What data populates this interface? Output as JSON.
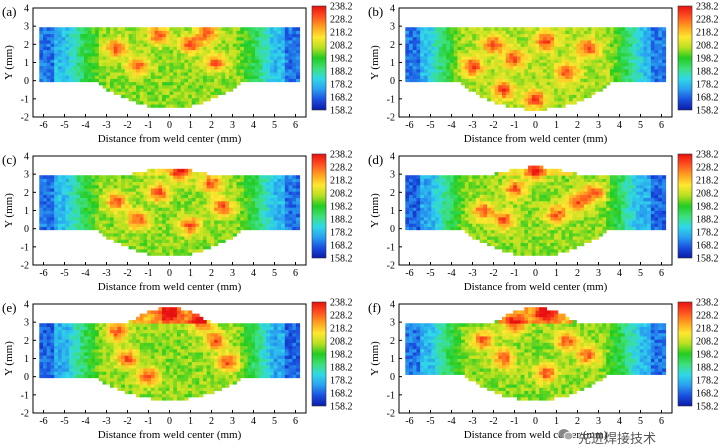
{
  "figure": {
    "watermark": "先进焊接技术",
    "colors": {
      "gradient": [
        "#0a1aa8",
        "#1a4fe0",
        "#2aa0f0",
        "#30d8e8",
        "#3ee07a",
        "#22cc22",
        "#b8e020",
        "#ffe830",
        "#ffa020",
        "#ff5020",
        "#e81010"
      ]
    }
  },
  "chart_data": [
    {
      "type": "heatmap",
      "panel_label": "(a)",
      "xlabel": "Distance from weld center (mm)",
      "ylabel": "Y (mm)",
      "xlim": [
        -6.5,
        6.5
      ],
      "ylim": [
        -2,
        4
      ],
      "xticks": [
        "-6",
        "-5",
        "-4",
        "-3",
        "-2",
        "-1",
        "0",
        "1",
        "2",
        "3",
        "4",
        "5",
        "6"
      ],
      "yticks": [
        "-2",
        "-1",
        "0",
        "1",
        "2",
        "3",
        "4"
      ],
      "colorbar": {
        "min": 158.2,
        "max": 238.2,
        "ticks": [
          "238.2",
          "228.2",
          "218.2",
          "208.2",
          "198.2",
          "188.2",
          "178.2",
          "168.2",
          "158.2"
        ]
      },
      "region": {
        "xmin": -6.2,
        "xmax": 6.2,
        "top": 3,
        "bottom": 0,
        "fz_half_width": 3.6,
        "fz_depth": -1.5,
        "reinforcement": 0
      },
      "hardness": {
        "bm": 178,
        "haz": 192,
        "fz": 204,
        "hot_spots": [
          [
            -2.5,
            1.8
          ],
          [
            -1.5,
            0.8
          ],
          [
            1,
            2
          ],
          [
            2.2,
            1
          ],
          [
            -0.5,
            2.5
          ],
          [
            1.8,
            2.6
          ]
        ]
      }
    },
    {
      "type": "heatmap",
      "panel_label": "(b)",
      "xlabel": "Distance from weld center (mm)",
      "ylabel": "Y (mm)",
      "xlim": [
        -6.5,
        6.5
      ],
      "ylim": [
        -2,
        4
      ],
      "xticks": [
        "-6",
        "-5",
        "-4",
        "-3",
        "-2",
        "-1",
        "0",
        "1",
        "2",
        "3",
        "4",
        "5",
        "6"
      ],
      "yticks": [
        "-2",
        "-1",
        "0",
        "1",
        "2",
        "3",
        "4"
      ],
      "colorbar": {
        "min": 158.2,
        "max": 238.2,
        "ticks": [
          "238.2",
          "228.2",
          "218.2",
          "208.2",
          "198.2",
          "188.2",
          "178.2",
          "168.2",
          "158.2"
        ]
      },
      "region": {
        "xmin": -6.2,
        "xmax": 6.2,
        "top": 3,
        "bottom": 0,
        "fz_half_width": 3.8,
        "fz_depth": -1.6,
        "reinforcement": 0
      },
      "hardness": {
        "bm": 178,
        "haz": 192,
        "fz": 206,
        "hot_spots": [
          [
            -2,
            2
          ],
          [
            -1,
            1.2
          ],
          [
            0.5,
            2.2
          ],
          [
            1.5,
            0.5
          ],
          [
            2.5,
            1.8
          ],
          [
            -3,
            0.8
          ],
          [
            -1.5,
            -0.5
          ],
          [
            0,
            -1
          ]
        ]
      }
    },
    {
      "type": "heatmap",
      "panel_label": "(c)",
      "xlabel": "Distance from weld center (mm)",
      "ylabel": "Y (mm)",
      "xlim": [
        -6.5,
        6.5
      ],
      "ylim": [
        -2,
        4
      ],
      "xticks": [
        "-6",
        "-5",
        "-4",
        "-3",
        "-2",
        "-1",
        "0",
        "1",
        "2",
        "3",
        "4",
        "5",
        "6"
      ],
      "yticks": [
        "-2",
        "-1",
        "0",
        "1",
        "2",
        "3",
        "4"
      ],
      "colorbar": {
        "min": 158.2,
        "max": 238.2,
        "ticks": [
          "238.2",
          "228.2",
          "218.2",
          "208.2",
          "198.2",
          "188.2",
          "178.2",
          "168.2",
          "158.2"
        ]
      },
      "region": {
        "xmin": -6.2,
        "xmax": 6.2,
        "top": 3,
        "bottom": 0,
        "fz_half_width": 3.6,
        "fz_depth": -1.5,
        "reinforcement": 0.3
      },
      "hardness": {
        "bm": 178,
        "haz": 192,
        "fz": 204,
        "hot_spots": [
          [
            -2.5,
            1.5
          ],
          [
            -1.5,
            0.5
          ],
          [
            0.5,
            3.1
          ],
          [
            2,
            2.5
          ],
          [
            2.5,
            1.2
          ],
          [
            -0.5,
            2
          ],
          [
            1,
            0.2
          ]
        ]
      }
    },
    {
      "type": "heatmap",
      "panel_label": "(d)",
      "xlabel": "Distance from weld center (mm)",
      "ylabel": "Y (mm)",
      "xlim": [
        -6.5,
        6.5
      ],
      "ylim": [
        -2,
        4
      ],
      "xticks": [
        "-6",
        "-5",
        "-4",
        "-3",
        "-2",
        "-1",
        "0",
        "1",
        "2",
        "3",
        "4",
        "5",
        "6"
      ],
      "yticks": [
        "-2",
        "-1",
        "0",
        "1",
        "2",
        "3",
        "4"
      ],
      "colorbar": {
        "min": 158.2,
        "max": 238.2,
        "ticks": [
          "238.2",
          "228.2",
          "218.2",
          "208.2",
          "198.2",
          "188.2",
          "178.2",
          "168.2",
          "158.2"
        ]
      },
      "region": {
        "xmin": -6.2,
        "xmax": 6.2,
        "top": 3,
        "bottom": 0,
        "fz_half_width": 3.6,
        "fz_depth": -1.5,
        "reinforcement": 0.4
      },
      "hardness": {
        "bm": 176,
        "haz": 190,
        "fz": 204,
        "hot_spots": [
          [
            -2.5,
            1
          ],
          [
            -1.5,
            0.5
          ],
          [
            0,
            3.2
          ],
          [
            2,
            1.5
          ],
          [
            2.8,
            2
          ],
          [
            -1,
            2.2
          ],
          [
            1,
            0.8
          ]
        ]
      }
    },
    {
      "type": "heatmap",
      "panel_label": "(e)",
      "xlabel": "Distance from weld center (mm)",
      "ylabel": "Y (mm)",
      "xlim": [
        -6.5,
        6.5
      ],
      "ylim": [
        -2,
        4
      ],
      "xticks": [
        "-6",
        "-5",
        "-4",
        "-3",
        "-2",
        "-1",
        "0",
        "1",
        "2",
        "3",
        "4",
        "5",
        "6"
      ],
      "yticks": [
        "-2",
        "-1",
        "0",
        "1",
        "2",
        "3",
        "4"
      ],
      "colorbar": {
        "min": 158.2,
        "max": 238.2,
        "ticks": [
          "238.2",
          "228.2",
          "218.2",
          "208.2",
          "198.2",
          "188.2",
          "178.2",
          "168.2",
          "158.2"
        ]
      },
      "region": {
        "xmin": -6.2,
        "xmax": 6.2,
        "top": 3,
        "bottom": 0,
        "fz_half_width": 3.6,
        "fz_depth": -1.3,
        "reinforcement": 0.8
      },
      "hardness": {
        "bm": 176,
        "haz": 190,
        "fz": 204,
        "hot_spots": [
          [
            -2.5,
            2.5
          ],
          [
            -2,
            1
          ],
          [
            0,
            3.5
          ],
          [
            2.2,
            2
          ],
          [
            2.8,
            0.8
          ],
          [
            -1,
            0
          ],
          [
            1.5,
            3
          ]
        ]
      }
    },
    {
      "type": "heatmap",
      "panel_label": "(f)",
      "xlabel": "Distance from weld center (mm)",
      "ylabel": "Y (mm)",
      "xlim": [
        -6.5,
        6.5
      ],
      "ylim": [
        -2,
        4
      ],
      "xticks": [
        "-6",
        "-5",
        "-4",
        "-3",
        "-2",
        "-1",
        "0",
        "1",
        "2",
        "3",
        "4",
        "5",
        "6"
      ],
      "yticks": [
        "-2",
        "-1",
        "0",
        "1",
        "2",
        "3",
        "4"
      ],
      "colorbar": {
        "min": 158.2,
        "max": 238.2,
        "ticks": [
          "238.2",
          "228.2",
          "218.2",
          "208.2",
          "198.2",
          "188.2",
          "178.2",
          "168.2",
          "158.2"
        ]
      },
      "region": {
        "xmin": -6.2,
        "xmax": 6.2,
        "top": 3,
        "bottom": 0.2,
        "fz_half_width": 3.6,
        "fz_depth": -1.3,
        "reinforcement": 0.8
      },
      "hardness": {
        "bm": 178,
        "haz": 192,
        "fz": 204,
        "hot_spots": [
          [
            -2.5,
            2
          ],
          [
            -1.5,
            1
          ],
          [
            0.5,
            3.6
          ],
          [
            1.5,
            2
          ],
          [
            2.5,
            1.2
          ],
          [
            -1,
            2.8
          ],
          [
            0.5,
            0.2
          ]
        ]
      }
    }
  ]
}
